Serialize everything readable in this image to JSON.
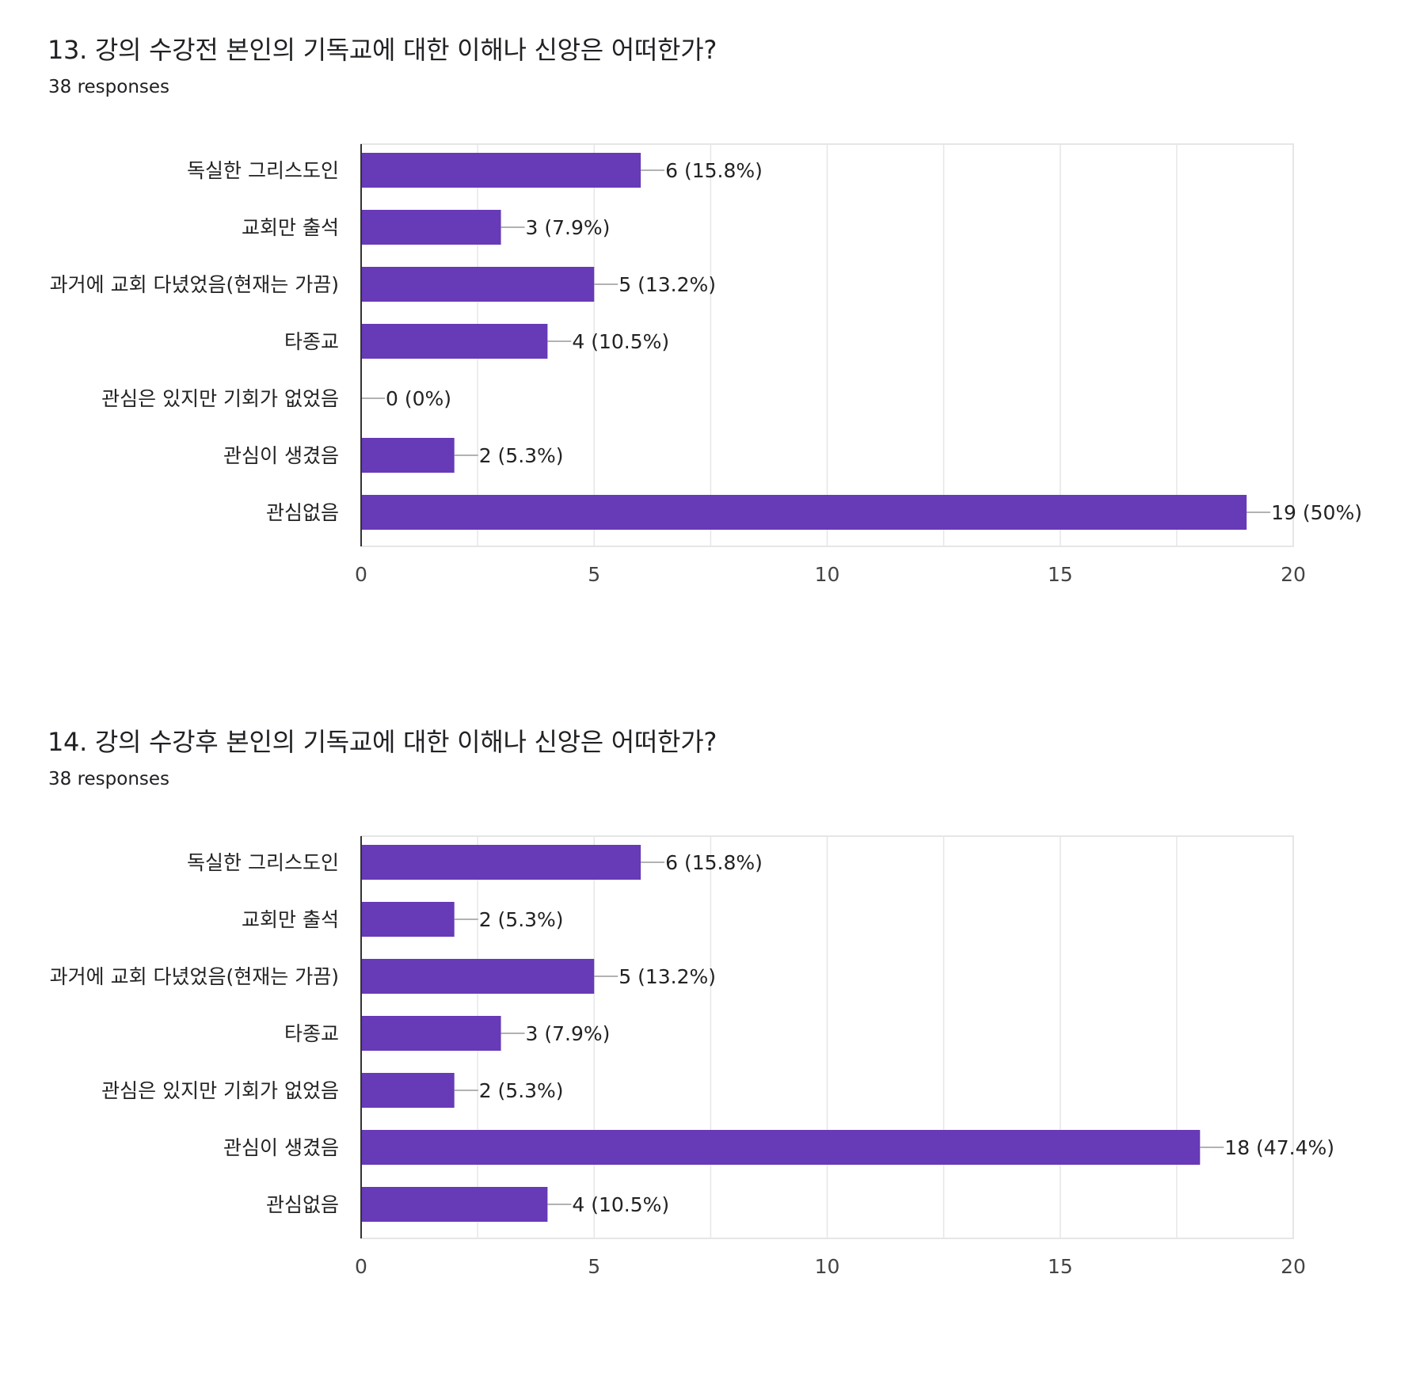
{
  "questions": [
    {
      "title": "13. 강의 수강전 본인의 기독교에 대한 이해나 신앙은 어떠한가?",
      "responses": "38 responses"
    },
    {
      "title": "14. 강의 수강후 본인의 기독교에 대한 이해나 신앙은 어떠한가?",
      "responses": "38 responses"
    }
  ],
  "colors": {
    "bar": "#673ab7",
    "grid": "#e6e6e6",
    "axis": "#333333",
    "leader": "#999999",
    "text": "#202124"
  },
  "chart_data": [
    {
      "type": "bar",
      "orientation": "horizontal",
      "categories": [
        "독실한 그리스도인",
        "교회만 출석",
        "과거에 교회 다녔었음(현재는 가끔)",
        "타종교",
        "관심은 있지만 기회가 없었음",
        "관심이 생겼음",
        "관심없음"
      ],
      "values": [
        6,
        3,
        5,
        4,
        0,
        2,
        19
      ],
      "data_labels": [
        "6 (15.8%)",
        "3 (7.9%)",
        "5 (13.2%)",
        "4 (10.5%)",
        "0 (0%)",
        "2 (5.3%)",
        "19 (50%)"
      ],
      "xlim": [
        0,
        20
      ],
      "xticks": [
        0,
        5,
        10,
        15,
        20
      ],
      "grid": true
    },
    {
      "type": "bar",
      "orientation": "horizontal",
      "categories": [
        "독실한 그리스도인",
        "교회만 출석",
        "과거에 교회 다녔었음(현재는 가끔)",
        "타종교",
        "관심은 있지만 기회가 없었음",
        "관심이 생겼음",
        "관심없음"
      ],
      "values": [
        6,
        2,
        5,
        3,
        2,
        18,
        4
      ],
      "data_labels": [
        "6 (15.8%)",
        "2 (5.3%)",
        "5 (13.2%)",
        "3 (7.9%)",
        "2 (5.3%)",
        "18 (47.4%)",
        "4 (10.5%)"
      ],
      "xlim": [
        0,
        20
      ],
      "xticks": [
        0,
        5,
        10,
        15,
        20
      ],
      "grid": true
    }
  ]
}
